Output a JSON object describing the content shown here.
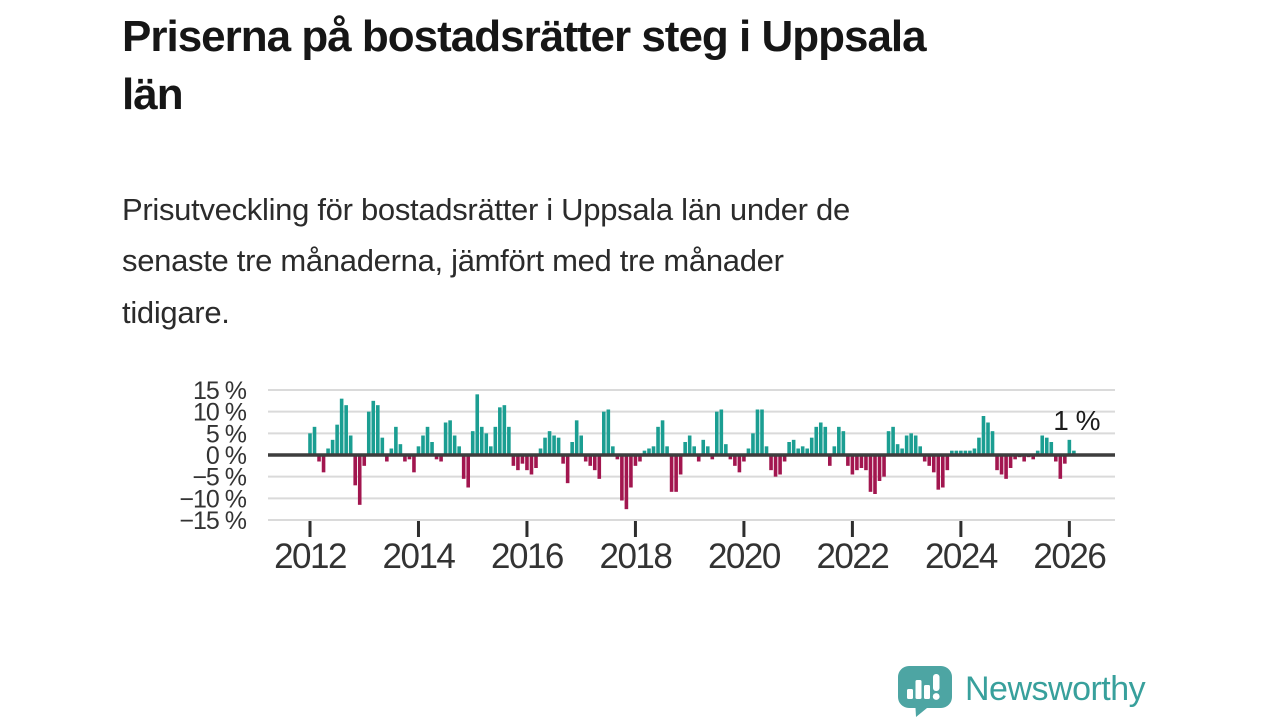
{
  "header": {
    "title_lines": [
      "Priserna på bostadsrätter steg i Uppsala",
      "län"
    ],
    "subtitle_lines": [
      "Prisutveckling för bostadsrätter i Uppsala län under de",
      "senaste tre månaderna, jämfört med tre månader",
      "tidigare."
    ]
  },
  "chart_data": {
    "type": "bar",
    "title": "Priserna på bostadsrätter steg i Uppsala län",
    "unit": "%",
    "frequency": "monthly",
    "start": {
      "year": 2012,
      "month": 1
    },
    "end": {
      "year": 2026,
      "month": 2
    },
    "ylim": [
      -15,
      15
    ],
    "grid": true,
    "y_ticks": [
      {
        "value": 15,
        "label": "15 %"
      },
      {
        "value": 10,
        "label": "10 %"
      },
      {
        "value": 5,
        "label": "5 %"
      },
      {
        "value": 0,
        "label": "0 %"
      },
      {
        "value": -5,
        "label": "−5 %"
      },
      {
        "value": -10,
        "label": "−10 %"
      },
      {
        "value": -15,
        "label": "−15 %"
      }
    ],
    "x_ticks": [
      {
        "year": 2012,
        "label": "2012"
      },
      {
        "year": 2014,
        "label": "2014"
      },
      {
        "year": 2016,
        "label": "2016"
      },
      {
        "year": 2018,
        "label": "2018"
      },
      {
        "year": 2020,
        "label": "2020"
      },
      {
        "year": 2022,
        "label": "2022"
      },
      {
        "year": 2024,
        "label": "2024"
      },
      {
        "year": 2026,
        "label": "2026"
      }
    ],
    "values": [
      5,
      6.5,
      -1.5,
      -4,
      1.5,
      3.5,
      7,
      13,
      11.5,
      4.5,
      -7,
      -11.5,
      -2.5,
      10,
      12.5,
      11.5,
      4,
      -1.5,
      1.5,
      6.5,
      2.5,
      -1.5,
      -1,
      -4,
      2,
      4.5,
      6.5,
      3,
      -1,
      -1.5,
      7.5,
      8,
      4.5,
      2,
      -5.5,
      -7.5,
      5.5,
      14,
      6.5,
      5,
      2,
      6.5,
      11,
      11.5,
      6.5,
      -2.5,
      -3.5,
      -2,
      -3.5,
      -4.5,
      -3,
      1.5,
      4,
      5.5,
      4.5,
      4,
      -2,
      -6.5,
      3,
      8,
      4.5,
      -1.5,
      -2.5,
      -3.5,
      -5.5,
      10,
      10.5,
      2,
      -1,
      -10.5,
      -12.5,
      -7.5,
      -2.5,
      -1.5,
      1,
      1.5,
      2,
      6.5,
      8,
      2,
      -8.5,
      -8.5,
      -4.5,
      3,
      4.5,
      2,
      -1.5,
      3.5,
      2,
      -1,
      10,
      10.5,
      2.5,
      -1,
      -2.5,
      -4,
      -1.5,
      1.5,
      5,
      10.5,
      10.5,
      2,
      -3.5,
      -5,
      -4.5,
      -1.5,
      3,
      3.5,
      1.5,
      2,
      1.5,
      4,
      6.5,
      7.5,
      6.5,
      -2.5,
      2,
      6.5,
      5.5,
      -2.5,
      -4.5,
      -3.5,
      -3,
      -3.5,
      -8.5,
      -9,
      -6,
      -5,
      5.5,
      6.5,
      2.5,
      1.5,
      4.5,
      5,
      4.5,
      2,
      -1.5,
      -2.5,
      -4,
      -8,
      -7.5,
      -3.5,
      1,
      1,
      1,
      1,
      1,
      1.5,
      4,
      9,
      7.5,
      5.5,
      -3.5,
      -4.5,
      -5.5,
      -3,
      -1,
      -0.5,
      -1.5,
      -0.5,
      -1,
      1,
      4.5,
      4,
      3,
      -1.5,
      -5.5,
      -2,
      3.5,
      1
    ],
    "annotation": {
      "text": "1 %",
      "value": 1
    },
    "colors": {
      "positive": "#1b9e92",
      "negative": "#a2164f",
      "zero_line": "#3d3d3d",
      "gridline": "#dadada",
      "tick_text": "#333333"
    }
  },
  "footer": {
    "brand": "Newsworthy",
    "brand_color": "#38a09c",
    "logo_bubble_color": "#4da5a3"
  }
}
